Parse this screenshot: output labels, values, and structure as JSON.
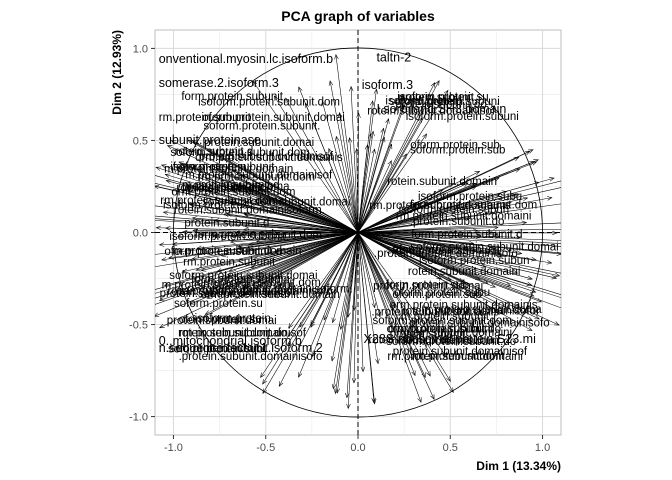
{
  "chart_data": {
    "type": "scatter",
    "title": "PCA graph of variables",
    "xlabel": "Dim 1 (13.34%)",
    "ylabel": "Dim 2 (12.93%)",
    "xlim": [
      -1.1,
      1.1
    ],
    "ylim": [
      -1.1,
      1.1
    ],
    "x_ticks": [
      "-1.0",
      "-0.5",
      "0.0",
      "0.5",
      "1.0"
    ],
    "y_ticks": [
      "-1.0",
      "-0.5",
      "0.0",
      "0.5",
      "1.0"
    ],
    "grid": true,
    "unit_circle": true,
    "legend": "none",
    "labeled_variables": [
      {
        "name": "onventional.myosin.lc.isoform.b",
        "x": -1.08,
        "y": 0.92
      },
      {
        "name": "taltn-2",
        "x": 0.1,
        "y": 0.93
      },
      {
        "name": "somerase.2.isoform.3",
        "x": -1.08,
        "y": 0.79
      },
      {
        "name": "0..mitochondrial.isoform.b",
        "x": -1.08,
        "y": -0.61
      },
      {
        "name": "n.sequence.factor.1.isoform.2",
        "x": -1.08,
        "y": -0.65
      },
      {
        "name": "X28S.ribosomal.protein.S23.mi",
        "x": 0.03,
        "y": -0.6
      },
      {
        "name": "subunit.proteinase",
        "x": -1.08,
        "y": 0.48
      },
      {
        "name": "isoform.3",
        "x": 0.02,
        "y": 0.78
      },
      {
        "name": "I.sorbiland.SH3.domain",
        "x": 0.1,
        "y": 0.65
      }
    ]
  }
}
